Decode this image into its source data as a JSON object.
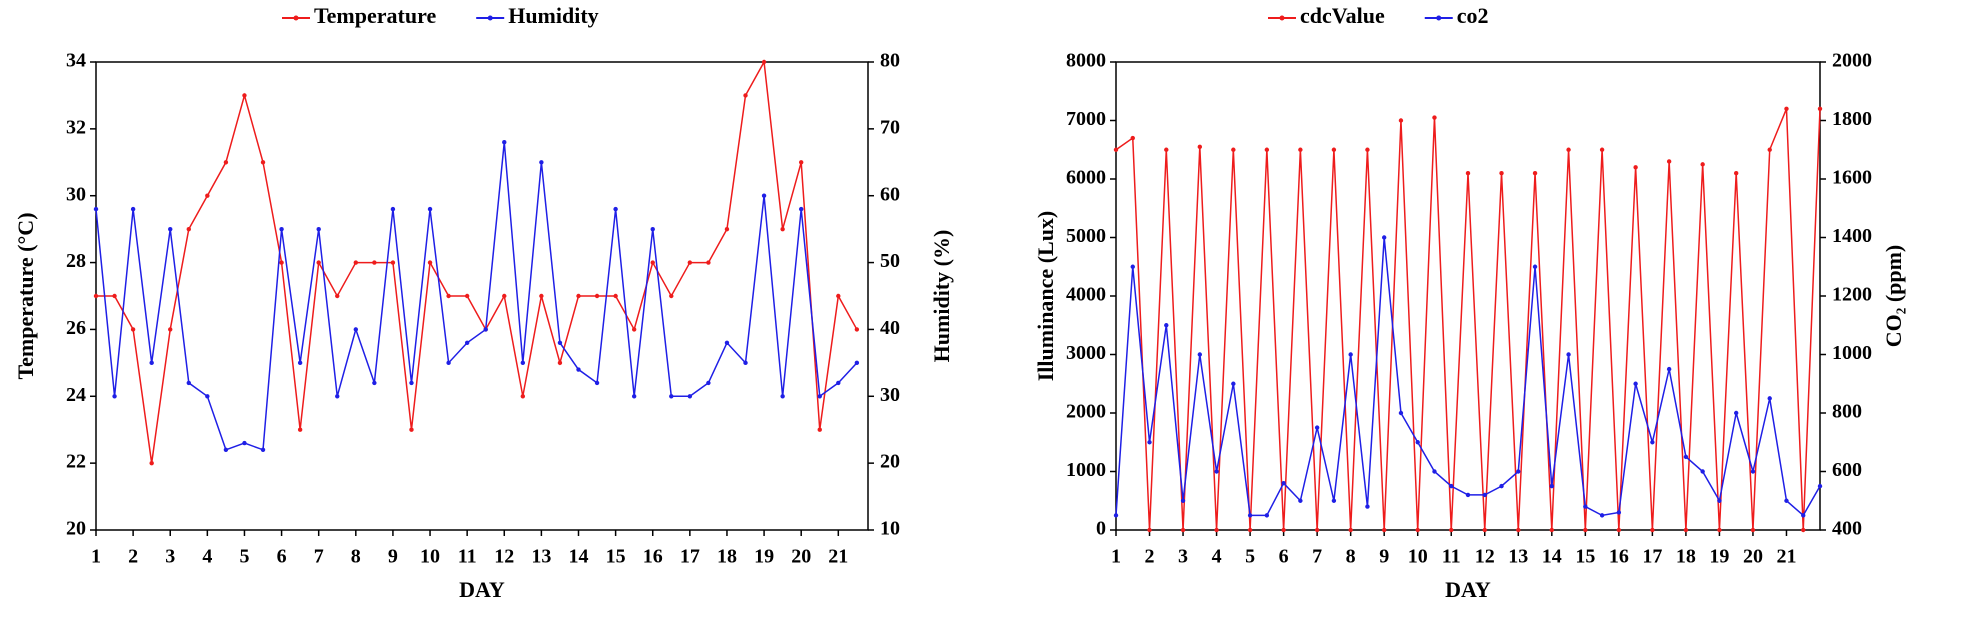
{
  "chart_data": [
    {
      "type": "line",
      "xlabel": "DAY",
      "ylabel": "Temperature (°C)",
      "y2label": "Humidity (%)",
      "legend": "top",
      "x": [
        1,
        1.5,
        2,
        2.5,
        3,
        3.5,
        4,
        4.5,
        5,
        5.5,
        6,
        6.5,
        7,
        7.5,
        8,
        8.5,
        9,
        9.5,
        10,
        10.5,
        11,
        11.5,
        12,
        12.5,
        13,
        13.5,
        14,
        14.5,
        15,
        15.5,
        16,
        16.5,
        17,
        17.5,
        18,
        18.5,
        19,
        19.5,
        20,
        20.5,
        21,
        21.5
      ],
      "xlim": [
        1,
        21.8
      ],
      "xticks": [
        1,
        2,
        3,
        4,
        5,
        6,
        7,
        8,
        9,
        10,
        11,
        12,
        13,
        14,
        15,
        16,
        17,
        18,
        19,
        20,
        21
      ],
      "ylim": [
        20,
        34
      ],
      "yticks": [
        20,
        22,
        24,
        26,
        28,
        30,
        32,
        34
      ],
      "y2lim": [
        10,
        80
      ],
      "y2ticks": [
        10,
        20,
        30,
        40,
        50,
        60,
        70,
        80
      ],
      "series": [
        {
          "name": "Temperature",
          "color": "#ee1c1c",
          "values": [
            27,
            27,
            26,
            22,
            26,
            29,
            30,
            31,
            33,
            31,
            28,
            23,
            28,
            27,
            28,
            28,
            28,
            23,
            28,
            27,
            27,
            26,
            27,
            24,
            27,
            25,
            27,
            27,
            27,
            26,
            28,
            27,
            28,
            28,
            29,
            33,
            34,
            29,
            31,
            23,
            27,
            26
          ]
        },
        {
          "name": "Humidity",
          "color": "#1f1fe6",
          "axis": "y2",
          "values": [
            58,
            30,
            58,
            35,
            55,
            32,
            30,
            22,
            23,
            22,
            55,
            35,
            55,
            30,
            40,
            32,
            58,
            32,
            58,
            35,
            38,
            40,
            68,
            35,
            65,
            38,
            34,
            32,
            58,
            30,
            55,
            30,
            30,
            32,
            38,
            35,
            60,
            30,
            58,
            30,
            32,
            35
          ]
        }
      ]
    },
    {
      "type": "line",
      "xlabel": "DAY",
      "ylabel": "Illuminance (Lux)",
      "y2label": "CO₂ (ppm)",
      "legend": "top",
      "x": [
        1,
        1.5,
        2,
        2.5,
        3,
        3.5,
        4,
        4.5,
        5,
        5.5,
        6,
        6.5,
        7,
        7.5,
        8,
        8.5,
        9,
        9.5,
        10,
        10.5,
        11,
        11.5,
        12,
        12.5,
        13,
        13.5,
        14,
        14.5,
        15,
        15.5,
        16,
        16.5,
        17,
        17.5,
        18,
        18.5,
        19,
        19.5,
        20,
        20.5,
        21,
        21.5,
        22
      ],
      "xlim": [
        1,
        22
      ],
      "xticks": [
        1,
        2,
        3,
        4,
        5,
        6,
        7,
        8,
        9,
        10,
        11,
        12,
        13,
        14,
        15,
        16,
        17,
        18,
        19,
        20,
        21
      ],
      "ylim": [
        0,
        8000
      ],
      "yticks": [
        0,
        1000,
        2000,
        3000,
        4000,
        5000,
        6000,
        7000,
        8000
      ],
      "y2lim": [
        400,
        2000
      ],
      "y2ticks": [
        400,
        600,
        800,
        1000,
        1200,
        1400,
        1600,
        1800,
        2000
      ],
      "series": [
        {
          "name": "cdcValue",
          "color": "#ee1c1c",
          "values": [
            6500,
            6700,
            0,
            6500,
            0,
            6550,
            0,
            6500,
            0,
            6500,
            0,
            6500,
            0,
            6500,
            0,
            6500,
            0,
            7000,
            0,
            7050,
            0,
            6100,
            0,
            6100,
            0,
            6100,
            0,
            6500,
            0,
            6500,
            0,
            6200,
            0,
            6300,
            0,
            6250,
            0,
            6100,
            0,
            6500,
            7200,
            0,
            7200
          ]
        },
        {
          "name": "co2",
          "color": "#1f1fe6",
          "axis": "y2",
          "values": [
            450,
            1300,
            700,
            1100,
            500,
            1000,
            600,
            900,
            450,
            450,
            560,
            500,
            750,
            500,
            1000,
            480,
            1400,
            800,
            700,
            600,
            550,
            520,
            520,
            550,
            600,
            1300,
            550,
            1000,
            480,
            450,
            460,
            900,
            700,
            950,
            650,
            600,
            500,
            800,
            600,
            850,
            500,
            450,
            550
          ]
        }
      ]
    }
  ]
}
